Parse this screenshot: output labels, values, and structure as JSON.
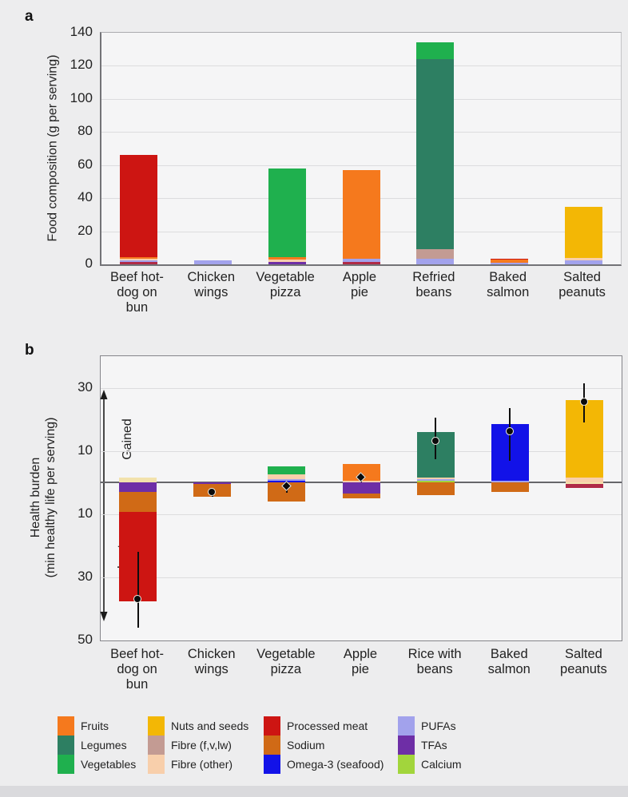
{
  "panels": {
    "a_letter": "a",
    "b_letter": "b"
  },
  "colors": {
    "fruits": "#F5791D",
    "legumes": "#2D7F62",
    "vegetables": "#1FB04E",
    "nuts": "#F3B705",
    "fibre_fvlw": "#C39B93",
    "fibre_other": "#F8CFAB",
    "processed_meat": "#CD1512",
    "sodium": "#D06A16",
    "omega3": "#1212E8",
    "pufas": "#A2A2EC",
    "tfas": "#6E2EA6",
    "calcium": "#A2D53C",
    "crimson": "#B02A47",
    "cream": "#F2E2AC"
  },
  "chart_data": [
    {
      "type": "bar",
      "id": "a",
      "ylabel": "Food composition (g per serving)",
      "ylim": [
        0,
        140
      ],
      "yticks": [
        0,
        20,
        40,
        60,
        80,
        100,
        120,
        140
      ],
      "grid": true,
      "categories": [
        "Beef hot-\ndog on\nbun",
        "Chicken\nwings",
        "Vegetable\npizza",
        "Apple\npie",
        "Refried\nbeans",
        "Baked\nsalmon",
        "Salted\npeanuts"
      ],
      "stacks": [
        [
          {
            "c": "crimson",
            "v": 1.3
          },
          {
            "c": "pufas",
            "v": 1.3
          },
          {
            "c": "fibre_other",
            "v": 1.0
          },
          {
            "c": "fruits",
            "v": 0.9
          },
          {
            "c": "processed_meat",
            "v": 61.5
          }
        ],
        [
          {
            "c": "pufas",
            "v": 2.2
          }
        ],
        [
          {
            "c": "tfas",
            "v": 1.5
          },
          {
            "c": "fibre_other",
            "v": 1.6
          },
          {
            "c": "fruits",
            "v": 1.1
          },
          {
            "c": "vegetables",
            "v": 53.8
          }
        ],
        [
          {
            "c": "crimson",
            "v": 1.5
          },
          {
            "c": "pufas",
            "v": 2.0
          },
          {
            "c": "fruits",
            "v": 53.5
          }
        ],
        [
          {
            "c": "pufas",
            "v": 3.5
          },
          {
            "c": "fibre_fvlw",
            "v": 5.5
          },
          {
            "c": "legumes",
            "v": 115
          },
          {
            "c": "vegetables",
            "v": 10
          }
        ],
        [
          {
            "c": "pufas",
            "v": 1.2
          },
          {
            "c": "fruits",
            "v": 1.7
          },
          {
            "c": "processed_meat",
            "v": 0.6
          }
        ],
        [
          {
            "c": "pufas",
            "v": 2.5
          },
          {
            "c": "fibre_other",
            "v": 1.2
          },
          {
            "c": "nuts",
            "v": 31.3
          }
        ]
      ]
    },
    {
      "type": "bar",
      "id": "b",
      "ylabel_line1": "Health burden",
      "ylabel_line2": "(min healthy life per serving)",
      "ylim": [
        -50,
        40
      ],
      "ytick_values": [
        30,
        10,
        -10,
        -30,
        -50
      ],
      "ytick_labels": [
        "30",
        "10",
        "10",
        "30",
        "50"
      ],
      "gridline_values": [
        30,
        10,
        -10,
        -30
      ],
      "annotations": {
        "gained": "Gained",
        "lost": "Lost"
      },
      "categories": [
        "Beef hot-\ndog on\nbun",
        "Chicken\nwings",
        "Vegetable\npizza",
        "Apple\npie",
        "Rice with\nbeans",
        "Baked\nsalmon",
        "Salted\npeanuts"
      ],
      "gains": [
        [
          {
            "c": "cream",
            "v": 1.5
          }
        ],
        [],
        [
          {
            "c": "omega3",
            "v": 0.6
          },
          {
            "c": "pufas",
            "v": 0.5
          },
          {
            "c": "fibre_other",
            "v": 1.6
          },
          {
            "c": "vegetables",
            "v": 2.4
          }
        ],
        [
          {
            "c": "fibre_other",
            "v": 0.5
          },
          {
            "c": "fruits",
            "v": 5.3
          }
        ],
        [
          {
            "c": "calcium",
            "v": 0.5
          },
          {
            "c": "pufas",
            "v": 0.6
          },
          {
            "c": "fibre_other",
            "v": 0.5
          },
          {
            "c": "legumes",
            "v": 14.4
          }
        ],
        [
          {
            "c": "pufas",
            "v": 0.5
          },
          {
            "c": "omega3",
            "v": 18.0
          }
        ],
        [
          {
            "c": "fibre_other",
            "v": 1.5
          },
          {
            "c": "nuts",
            "v": 24.5
          }
        ]
      ],
      "losses": [
        [
          {
            "c": "tfas",
            "v": 3.0
          },
          {
            "c": "sodium",
            "v": 6.2
          },
          {
            "c": "processed_meat",
            "v": 28.3
          }
        ],
        [
          {
            "c": "tfas",
            "v": 0.4
          },
          {
            "c": "sodium",
            "v": 4.2
          }
        ],
        [
          {
            "c": "sodium",
            "v": 6.0
          }
        ],
        [
          {
            "c": "tfas",
            "v": 3.4
          },
          {
            "c": "sodium",
            "v": 1.6
          }
        ],
        [
          {
            "c": "sodium",
            "v": 4.0
          }
        ],
        [
          {
            "c": "sodium",
            "v": 3.0
          }
        ],
        [
          {
            "c": "cream",
            "v": 0.4
          },
          {
            "c": "crimson",
            "v": 1.2
          }
        ]
      ],
      "points": [
        {
          "v": -37,
          "shape": "circle"
        },
        {
          "v": -3.1,
          "shape": "circle"
        },
        {
          "v": -1.2,
          "shape": "diamond"
        },
        {
          "v": 1.6,
          "shape": "diamond"
        },
        {
          "v": 13,
          "shape": "circle"
        },
        {
          "v": 16,
          "shape": "circle"
        },
        {
          "v": 25.5,
          "shape": "circle"
        }
      ],
      "whiskers": [
        [
          -46,
          -22
        ],
        [
          -4.4,
          -2.2
        ],
        [
          -3.2,
          0.4
        ],
        [
          0,
          3
        ],
        [
          7.5,
          20.5
        ],
        [
          7,
          23.5
        ],
        [
          19,
          31.5
        ]
      ]
    }
  ],
  "legend": {
    "columns": [
      {
        "items": [
          {
            "label": "Fruits",
            "color_key": "fruits"
          },
          {
            "label": "Legumes",
            "color_key": "legumes"
          },
          {
            "label": "Vegetables",
            "color_key": "vegetables"
          }
        ]
      },
      {
        "items": [
          {
            "label": "Nuts and seeds",
            "color_key": "nuts"
          },
          {
            "label": "Fibre (f,v,lw)",
            "color_key": "fibre_fvlw"
          },
          {
            "label": "Fibre (other)",
            "color_key": "fibre_other"
          }
        ]
      },
      {
        "items": [
          {
            "label": "Processed meat",
            "color_key": "processed_meat"
          },
          {
            "label": "Sodium",
            "color_key": "sodium"
          },
          {
            "label": "Omega-3 (seafood)",
            "color_key": "omega3"
          }
        ]
      },
      {
        "items": [
          {
            "label": "PUFAs",
            "color_key": "pufas"
          },
          {
            "label": "TFAs",
            "color_key": "calcium_placeholder_tfas"
          },
          {
            "label": "Calcium",
            "color_key": "calcium"
          }
        ]
      }
    ]
  }
}
